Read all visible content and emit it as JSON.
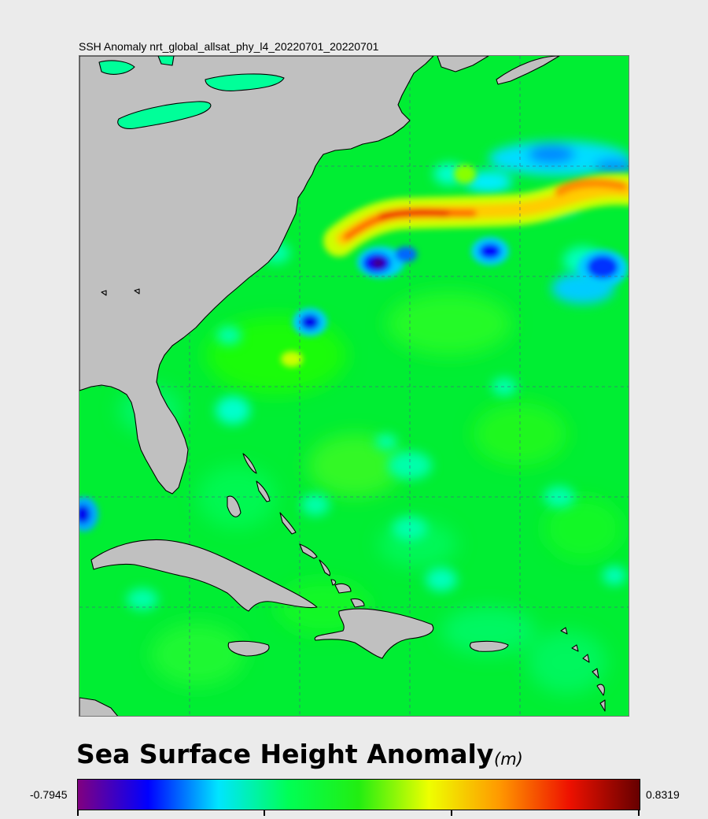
{
  "map": {
    "title": "SSH Anomaly nrt_global_allsat_phy_l4_20220701_20220701",
    "colors": {
      "land": "#c0c0c0",
      "coast": "#000000",
      "background_anomaly": "#00ee33",
      "gridline": "#4a5a8a"
    },
    "features": [
      "gulf-stream-positive-anomaly",
      "cold-eddies",
      "us-east-coast",
      "florida",
      "cuba",
      "hispaniola",
      "bahamas"
    ]
  },
  "legend": {
    "title": "Sea Surface Height Anomaly",
    "unit": "(m)",
    "min_label": "-0.7945",
    "max_label": "0.8319",
    "colormap": [
      "#800080",
      "#0000ff",
      "#00e5ff",
      "#00ff55",
      "#22ee11",
      "#eeff00",
      "#ff9900",
      "#ee1100",
      "#660000"
    ]
  }
}
